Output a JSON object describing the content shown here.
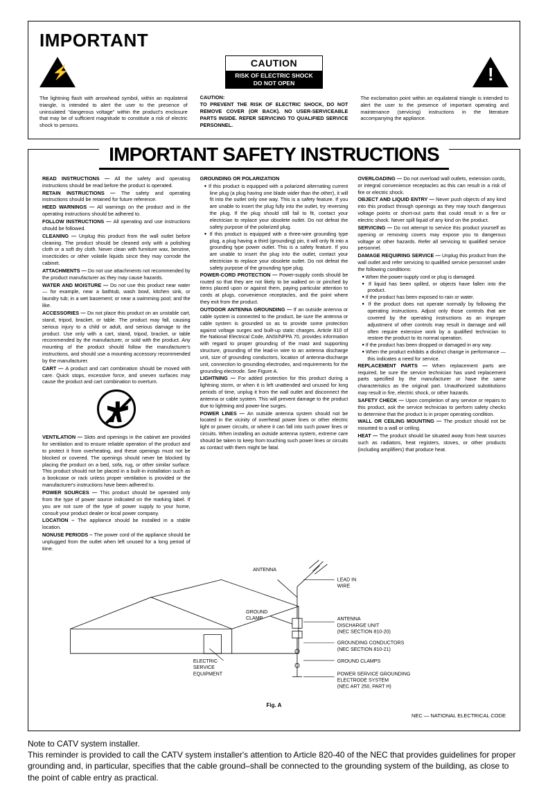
{
  "box1": {
    "heading": "IMPORTANT",
    "left": "The lightning flash with arrowhead symbol, within an equilateral triangle, is intended to alert the user to the presence of uninsulated \"dangerous voltage\" within the product's enclosure that may be of sufficient magnitude to constitute a risk of electric shock to persons.",
    "caution_word": "CAUTION",
    "caution_sub": "RISK OF ELECTRIC SHOCK\nDO NOT OPEN",
    "center_head": "CAUTION:",
    "center": "TO PREVENT THE RISK OF ELECTRIC SHOCK, DO NOT REMOVE COVER (OR BACK). NO USER-SERVICEABLE PARTS INSIDE. REFER SERVICING TO QUALIFIED SERVICE PERSONNEL.",
    "right": "The exclamation point within an equilateral triangle is intended to alert the user to the presence of important operating and maintenance (servicing) instructions in the literature accompanying the appliance."
  },
  "box2": {
    "title": "IMPORTANT SAFETY INSTRUCTIONS",
    "col1": [
      {
        "h": "READ INSTRUCTIONS — ",
        "b": "All the safety and operating instructions should be read before the product is operated."
      },
      {
        "h": "RETAIN INSTRUCTIONS — ",
        "b": "The safety and operating instructions should be retained for future reference."
      },
      {
        "h": "HEED WARNINGS — ",
        "b": "All warnings on the product and in the operating instructions should be adhered to."
      },
      {
        "h": "FOLLOW INSTRUCTIONS — ",
        "b": "All operating and use instructions should be followed."
      },
      {
        "h": "CLEANING — ",
        "b": "Unplug this product from the wall outlet before cleaning. The product should be cleaned only with a polishing cloth or a soft dry cloth. Never clean with furniture wax, benzine, insecticides or other volatile liquids since they may corrode the cabinet."
      },
      {
        "h": "ATTACHMENTS — ",
        "b": "Do not use attachments not recommended by the product manufacturer as they may cause hazards."
      },
      {
        "h": "WATER AND MOISTURE — ",
        "b": "Do not use this product near water — for example, near a bathtub, wash bowl, kitchen sink, or laundry tub; in a wet basement; or near a swimming pool; and the like."
      },
      {
        "h": "ACCESSORIES — ",
        "b": "Do not place this product on an unstable cart, stand, tripod, bracket, or table. The product may fall, causing serious injury to a child or adult, and serious damage to the product. Use only with a cart, stand, tripod, bracket, or table recommended by the manufacturer, or sold with the product. Any mounting of the product should follow the manufacturer's instructions, and should use a mounting accessory recommended by the manufacturer."
      },
      {
        "h": "CART — ",
        "b": "A product and cart combination should be moved with care. Quick stops, excessive force, and uneven surfaces may cause the product and cart combination to overturn."
      },
      {
        "h": "VENTILATION — ",
        "b": "Slots and openings in the cabinet are provided for ventilation and to ensure reliable operation of the product and to protect it from overheating, and these openings must not be blocked or covered. The openings should never be blocked by placing the product on a bed, sofa, rug, or other similar surface. This product should not be placed in a built-in installation such as a bookcase or rack unless proper ventilation is provided or the manufacturer's instructions have been adhered to."
      },
      {
        "h": "POWER SOURCES — ",
        "b": "This product should be operated only from the type of power source indicated on the marking label. If you are not sure of the type of power supply to your home, consult your product dealer or local power company."
      },
      {
        "h": "LOCATION – ",
        "b": "The appliance should be installed in a stable location."
      },
      {
        "h": "NONUSE PERIODS – ",
        "b": "The power cord of the appliance should be unplugged from the outlet when left unused for a long period of time."
      }
    ],
    "col2": [
      {
        "h": "GROUNDING OR POLARIZATION",
        "b": ""
      },
      {
        "sub": true,
        "b": "If this product is equipped with a polarized alternating current line plug (a plug having one blade wider than the other), it will fit into the outlet only one way. This is a safety feature. If you are unable to insert the plug fully into the outlet, try reversing the plug. If the plug should still fail to fit, contact your electrician to replace your obsolete outlet. Do not defeat the safety purpose of the polarized plug."
      },
      {
        "sub": true,
        "b": "If this product is equipped with a three-wire grounding type plug, a plug having a third (grounding) pin, it will only fit into a grounding type power outlet. This is a safety feature. If you are unable to insert the plug into the outlet, contact your electrician to replace your obsolete outlet. Do not defeat the safety purpose of the grounding type plug."
      },
      {
        "h": "POWER-CORD PROTECTION — ",
        "b": "Power-supply cords should be routed so that they are not likely to be walked on or pinched by items placed upon or against them, paying particular attention to cords at plugs, convenience receptacles, and the point where they exit from the product."
      },
      {
        "h": "OUTDOOR ANTENNA GROUNDING — ",
        "b": "If an outside antenna or cable system is connected to the product, be sure the antenna or cable system is grounded so as to provide some protection against voltage surges and built-up static charges. Article 810 of the National Electrical Code, ANSI/NFPA 70, provides information with regard to proper grounding of the mast and supporting structure, grounding of the lead-in wire to an antenna discharge unit, size of grounding conductors, location of antenna-discharge unit, connection to grounding electrodes, and requirements for the grounding electrode. See Figure A."
      },
      {
        "h": "LIGHTNING — ",
        "b": "For added protection for this product during a lightning storm, or when it is left unattended and unused for long periods of time, unplug it from the wall outlet and disconnect the antenna or cable system. This will prevent damage to the product due to lightning and power-line surges."
      },
      {
        "h": "POWER LINES — ",
        "b": "An outside antenna system should not be located in the vicinity of overhead power lines or other electric light or power circuits, or where it can fall into such power lines or circuits. When installing an outside antenna system, extreme care should be taken to keep from touching such power lines or circuits as contact with them might be fatal."
      }
    ],
    "col3": [
      {
        "h": "OVERLOADING — ",
        "b": "Do not overload wall outlets, extension cords, or integral convenience receptacles as this can result in a risk of fire or electric shock."
      },
      {
        "h": "OBJECT AND LIQUID ENTRY — ",
        "b": "Never push objects of any kind into this product through openings as they may touch dangerous voltage points or short-out parts that could result in a fire or electric shock. Never spill liquid of any kind on the product."
      },
      {
        "h": "SERVICING — ",
        "b": "Do not attempt to service this product yourself as opening or removing covers may expose you to dangerous voltage or other hazards. Refer all servicing to qualified service personnel."
      },
      {
        "h": "DAMAGE REQUIRING SERVICE — ",
        "b": "Unplug this product from the wall outlet and refer servicing to qualified service personnel under the following conditions:"
      },
      {
        "sub": true,
        "b": "When the power-supply cord or plug is damaged."
      },
      {
        "sub": true,
        "b": "If liquid has been spilled, or objects have fallen into the product."
      },
      {
        "sub": true,
        "b": "If the product has been exposed to rain or water."
      },
      {
        "sub": true,
        "b": "If the product does not operate normally by following the operating instructions. Adjust only those controls that are covered by the operating instructions as an improper adjustment of other controls may result in damage and will often require extensive work by a qualified technician to restore the product to its normal operation."
      },
      {
        "sub": true,
        "b": "If the product has been dropped or damaged in any way."
      },
      {
        "sub": true,
        "b": "When the product exhibits a distinct change in performance — this indicates a need for service."
      },
      {
        "h": "REPLACEMENT PARTS — ",
        "b": "When replacement parts are required, be sure the service technician has used replacement parts specified by the manufacturer or have the same characteristics as the original part. Unauthorized substitutions may result in fire, electric shock, or other hazards."
      },
      {
        "h": "SAFETY CHECK — ",
        "b": "Upon completion of any service or repairs to this product, ask the service technician to perform safety checks to determine that the product is in proper operating condition."
      },
      {
        "h": "WALL OR CEILING MOUNTING — ",
        "b": "The product should not be mounted to a wall or ceiling."
      },
      {
        "h": "HEAT — ",
        "b": "The product should be situated away from heat sources such as radiators, heat registers, stoves, or other products (including amplifiers) that produce heat."
      }
    ]
  },
  "diagram": {
    "labels": {
      "antenna": "ANTENNA",
      "lead": "LEAD IN\nWIRE",
      "gclamp": "GROUND\nCLAMP",
      "discharge": "ANTENNA\nDISCHARGE UNIT\n(NEC SECTION 810-20)",
      "gcond": "GROUNDING CONDUCTORS\n(NEC SECTION 810-21)",
      "gclamps": "GROUND CLAMPS",
      "electrode": "POWER SERVICE GROUNDING\nELECTRODE SYSTEM\n(NEC ART 250, PART H)",
      "service": "ELECTRIC\nSERVICE\nEQUIPMENT",
      "fig": "Fig. A",
      "nec": "NEC — NATIONAL ELECTRICAL CODE"
    }
  },
  "note": {
    "head": "Note to CATV system installer.",
    "body": "This reminder is provided to call the CATV system installer's attention to Article 820-40 of the NEC that provides guidelines for proper grounding and, in particular, specifies that the cable ground–shall be connected to the grounding system of the building, as close to the point of cable entry as practical."
  }
}
